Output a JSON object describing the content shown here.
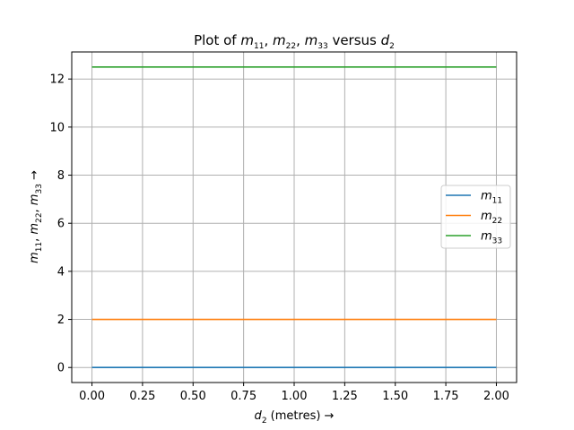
{
  "chart_data": {
    "type": "line",
    "title": "Plot of m11, m22, m33 versus d2",
    "xlabel": "d2 (metres) →",
    "ylabel": "m11, m22, m33 →",
    "xlim": [
      -0.1,
      2.1
    ],
    "ylim": [
      -0.625,
      13.125
    ],
    "xticks": [
      0.0,
      0.25,
      0.5,
      0.75,
      1.0,
      1.25,
      1.5,
      1.75,
      2.0
    ],
    "xtick_labels": [
      "0.00",
      "0.25",
      "0.50",
      "0.75",
      "1.00",
      "1.25",
      "1.50",
      "1.75",
      "2.00"
    ],
    "yticks": [
      0,
      2,
      4,
      6,
      8,
      10,
      12
    ],
    "ytick_labels": [
      "0",
      "2",
      "4",
      "6",
      "8",
      "10",
      "12"
    ],
    "grid": true,
    "legend_position": "center-right",
    "x": [
      0.0,
      2.0
    ],
    "series": [
      {
        "name": "m11",
        "color": "#1f77b4",
        "values": [
          0.0,
          0.0
        ]
      },
      {
        "name": "m22",
        "color": "#ff7f0e",
        "values": [
          2.0,
          2.0
        ]
      },
      {
        "name": "m33",
        "color": "#2ca02c",
        "values": [
          12.5,
          12.5
        ]
      }
    ]
  }
}
